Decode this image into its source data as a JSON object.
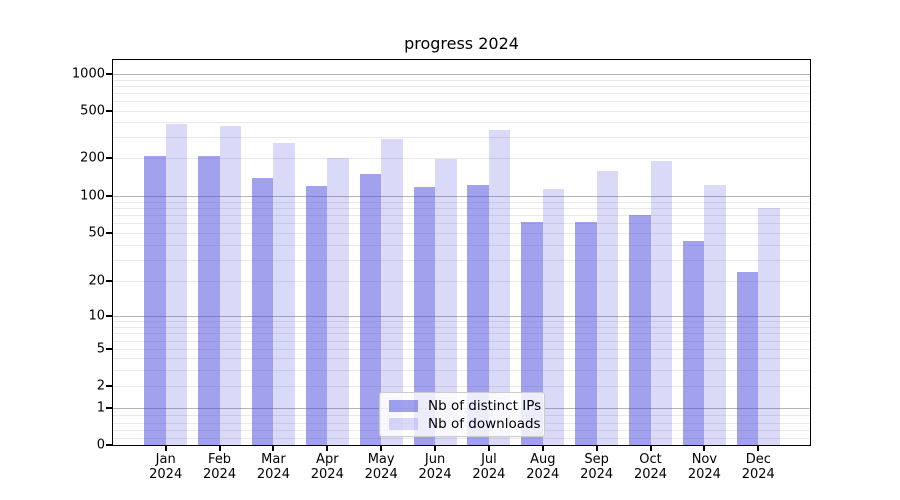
{
  "chart_data": {
    "type": "bar",
    "title": "progress 2024",
    "xlabel": "",
    "ylabel": "",
    "year": "2024",
    "categories": [
      "Jan",
      "Feb",
      "Mar",
      "Apr",
      "May",
      "Jun",
      "Jul",
      "Aug",
      "Sep",
      "Oct",
      "Nov",
      "Dec"
    ],
    "series": [
      {
        "name": "Nb of distinct IPs",
        "color": "rgba(68,68,221,0.5)",
        "values": [
          210,
          210,
          138,
          121,
          149,
          118,
          123,
          62,
          62,
          70,
          43,
          24
        ]
      },
      {
        "name": "Nb of downloads",
        "color": "rgba(68,68,221,0.2)",
        "values": [
          385,
          370,
          270,
          200,
          288,
          196,
          345,
          113,
          158,
          190,
          123,
          80
        ]
      }
    ],
    "yscale": "symlog",
    "ylim": [
      0,
      1300
    ],
    "yticks": [
      1000,
      500,
      200,
      100,
      50,
      20,
      10,
      5,
      2,
      1,
      0
    ],
    "ytick_labels": [
      "1000",
      "500",
      "200",
      "100",
      "50",
      "20",
      "10",
      "5",
      "2",
      "1",
      "0"
    ],
    "grid": "both",
    "legend_position": "lower center"
  },
  "style": {
    "major_grid_color": "#b5b5b5",
    "minor_grid_color": "#e9e9e9",
    "spine_color": "#000000",
    "background": "#ffffff"
  }
}
